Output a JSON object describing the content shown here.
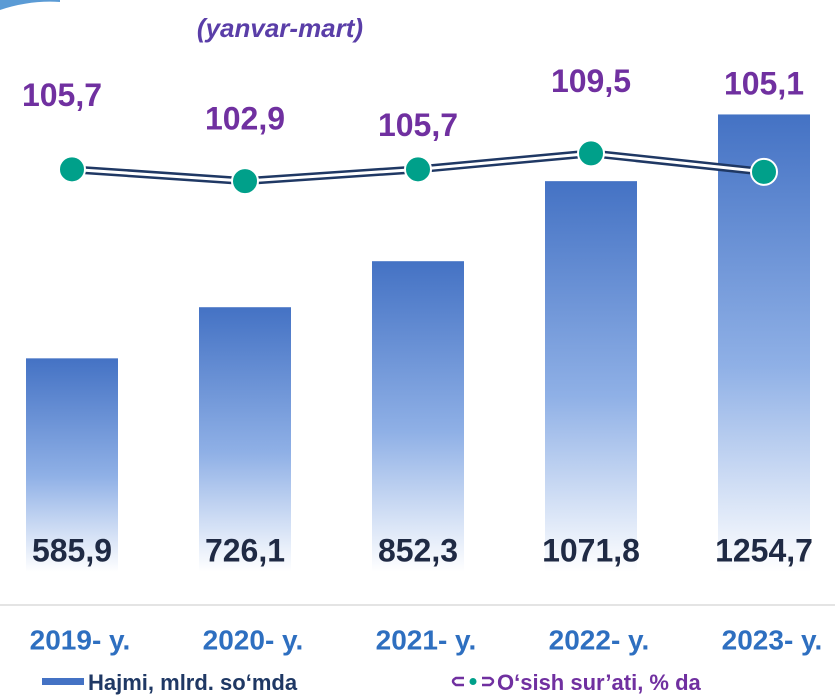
{
  "chart_data": {
    "type": "bar",
    "subtitle": "(yanvar-mart)",
    "categories": [
      "2019- y.",
      "2020- y.",
      "2021- y.",
      "2022- y.",
      "2023- y."
    ],
    "series": [
      {
        "name": "Hajmi, mlrd. so‘mda",
        "type": "bar",
        "color": "#4472c4",
        "values": [
          585.9,
          726.1,
          852.3,
          1071.8,
          1254.7
        ],
        "value_labels": [
          "585,9",
          "726,1",
          "852,3",
          "1071,8",
          "1254,7"
        ]
      },
      {
        "name": "O‘sish sur’ati, % da",
        "type": "line",
        "axis": "y2",
        "color": "#1f3864",
        "marker_color": "#00a08a",
        "values": [
          105.7,
          102.9,
          105.7,
          109.5,
          105.1
        ],
        "value_labels": [
          "105,7",
          "102,9",
          "105,7",
          "109,5",
          "105,1"
        ]
      }
    ],
    "ylim": [
      0,
      1500
    ],
    "y2lim": [
      10,
      140
    ]
  }
}
